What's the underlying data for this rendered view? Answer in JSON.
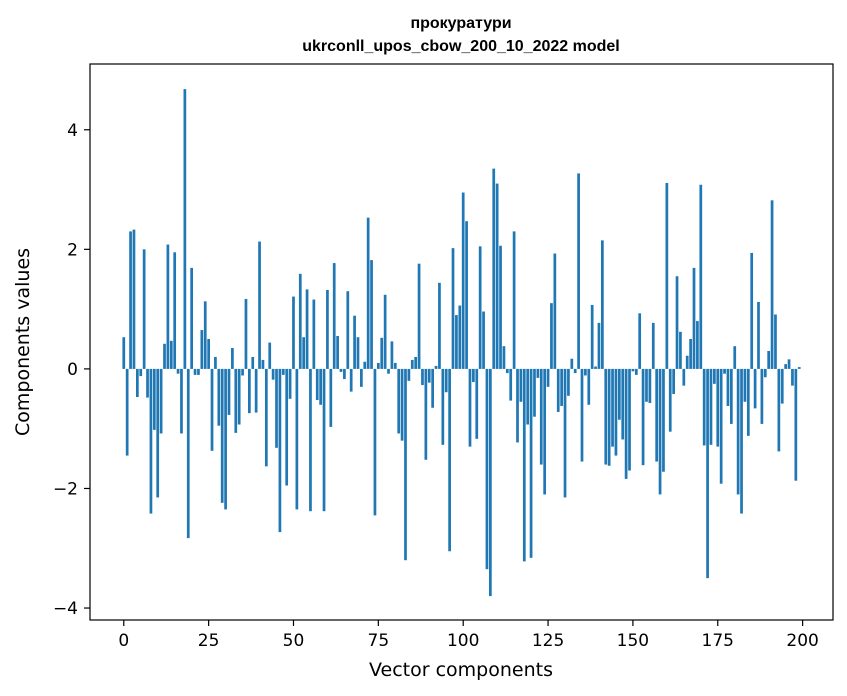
{
  "chart_data": {
    "type": "bar",
    "title": "прокуратури",
    "subtitle": "ukrconll_upos_cbow_200_10_2022 model",
    "xlabel": "Vector components",
    "ylabel": "Components values",
    "xlim": [
      -9.95,
      208.95
    ],
    "ylim": [
      -4.2,
      5.1
    ],
    "xticks": [
      0,
      25,
      50,
      75,
      100,
      125,
      150,
      175,
      200
    ],
    "xtick_labels": [
      "0",
      "25",
      "50",
      "75",
      "100",
      "125",
      "150",
      "175",
      "200"
    ],
    "yticks": [
      -4,
      -2,
      0,
      2,
      4
    ],
    "ytick_labels": [
      "−4",
      "−2",
      "0",
      "2",
      "4"
    ],
    "grid": false,
    "bar_color": "#1f77b4",
    "x": [
      0,
      1,
      2,
      3,
      4,
      5,
      6,
      7,
      8,
      9,
      10,
      11,
      12,
      13,
      14,
      15,
      16,
      17,
      18,
      19,
      20,
      21,
      22,
      23,
      24,
      25,
      26,
      27,
      28,
      29,
      30,
      31,
      32,
      33,
      34,
      35,
      36,
      37,
      38,
      39,
      40,
      41,
      42,
      43,
      44,
      45,
      46,
      47,
      48,
      49,
      50,
      51,
      52,
      53,
      54,
      55,
      56,
      57,
      58,
      59,
      60,
      61,
      62,
      63,
      64,
      65,
      66,
      67,
      68,
      69,
      70,
      71,
      72,
      73,
      74,
      75,
      76,
      77,
      78,
      79,
      80,
      81,
      82,
      83,
      84,
      85,
      86,
      87,
      88,
      89,
      90,
      91,
      92,
      93,
      94,
      95,
      96,
      97,
      98,
      99,
      100,
      101,
      102,
      103,
      104,
      105,
      106,
      107,
      108,
      109,
      110,
      111,
      112,
      113,
      114,
      115,
      116,
      117,
      118,
      119,
      120,
      121,
      122,
      123,
      124,
      125,
      126,
      127,
      128,
      129,
      130,
      131,
      132,
      133,
      134,
      135,
      136,
      137,
      138,
      139,
      140,
      141,
      142,
      143,
      144,
      145,
      146,
      147,
      148,
      149,
      150,
      151,
      152,
      153,
      154,
      155,
      156,
      157,
      158,
      159,
      160,
      161,
      162,
      163,
      164,
      165,
      166,
      167,
      168,
      169,
      170,
      171,
      172,
      173,
      174,
      175,
      176,
      177,
      178,
      179,
      180,
      181,
      182,
      183,
      184,
      185,
      186,
      187,
      188,
      189,
      190,
      191,
      192,
      193,
      194,
      195,
      196,
      197,
      198,
      199
    ],
    "values": [
      0.53,
      -1.45,
      2.3,
      2.33,
      -0.47,
      -0.12,
      2.0,
      -0.48,
      -2.42,
      -1.02,
      -2.15,
      -1.08,
      0.42,
      2.08,
      0.47,
      1.95,
      -0.08,
      -1.08,
      4.68,
      -2.83,
      1.69,
      -0.1,
      -0.1,
      0.65,
      1.13,
      0.5,
      -1.37,
      0.2,
      -0.95,
      -2.24,
      -2.35,
      -0.77,
      0.35,
      -1.07,
      -0.93,
      -0.11,
      1.17,
      -0.74,
      0.2,
      -0.73,
      2.13,
      0.15,
      -1.63,
      0.44,
      -0.18,
      -1.32,
      -2.73,
      -0.1,
      -1.95,
      -0.5,
      1.21,
      -2.35,
      1.59,
      0.53,
      1.33,
      -2.38,
      1.16,
      -0.52,
      -0.6,
      -2.38,
      1.32,
      -0.97,
      1.77,
      0.55,
      -0.05,
      -0.17,
      1.3,
      -0.38,
      0.89,
      0.53,
      -0.3,
      0.12,
      2.53,
      1.82,
      -2.45,
      0.1,
      0.52,
      1.24,
      -0.08,
      0.46,
      0.1,
      -1.08,
      -1.2,
      -3.2,
      -0.2,
      0.15,
      0.2,
      1.76,
      -0.27,
      -1.52,
      -0.23,
      -0.65,
      0.05,
      1.44,
      -1.27,
      -0.39,
      -3.05,
      2.02,
      0.9,
      1.06,
      2.95,
      2.47,
      -1.3,
      -0.22,
      -1.17,
      2.05,
      0.96,
      -3.35,
      -3.8,
      3.35,
      3.1,
      2.06,
      0.38,
      -0.07,
      -0.53,
      2.3,
      -1.23,
      -0.55,
      -3.22,
      -0.93,
      -3.16,
      -0.8,
      -0.15,
      -1.6,
      -2.1,
      -0.3,
      1.1,
      1.93,
      -0.72,
      -0.62,
      -2.15,
      -0.45,
      0.17,
      -0.07,
      3.27,
      -1.55,
      -0.11,
      -0.6,
      1.07,
      0.04,
      0.77,
      2.15,
      -1.6,
      -1.62,
      -1.3,
      -1.45,
      -0.85,
      -1.18,
      -1.84,
      -1.7,
      -0.04,
      -0.1,
      0.93,
      -1.61,
      -0.55,
      -0.57,
      0.77,
      -1.55,
      -2.1,
      -1.72,
      3.11,
      -1.05,
      -0.42,
      1.55,
      0.62,
      -0.28,
      0.22,
      0.5,
      1.69,
      0.8,
      3.08,
      -1.28,
      -3.5,
      -1.27,
      -0.25,
      -1.3,
      -1.92,
      -0.08,
      -0.62,
      -0.92,
      0.38,
      -2.1,
      -2.42,
      -0.55,
      -1.12,
      1.94,
      -0.66,
      1.12,
      -0.92,
      -0.14,
      0.3,
      2.82,
      0.91,
      -1.38,
      -0.58,
      0.08,
      0.16,
      -0.28,
      -1.87,
      0.03
    ]
  }
}
